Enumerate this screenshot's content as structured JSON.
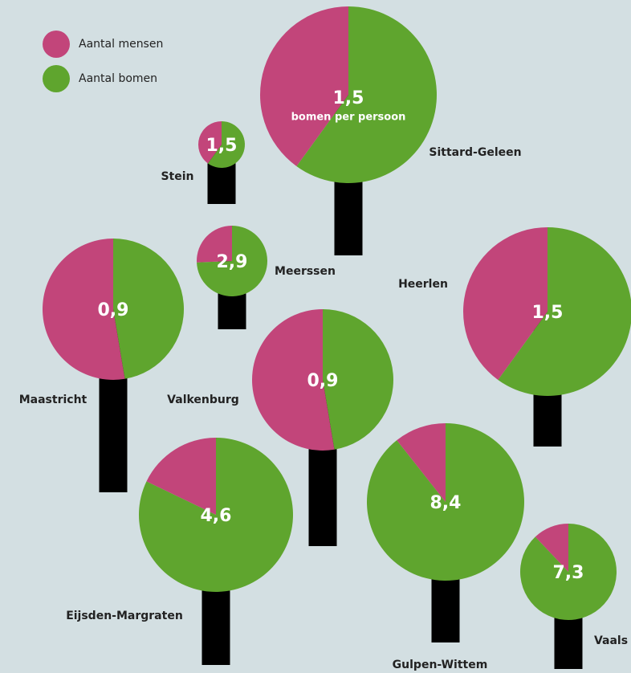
{
  "chart_data": {
    "type": "tree-pie",
    "series": [
      {
        "name": "Aantal mensen",
        "color": "#c2457a"
      },
      {
        "name": "Aantal bomen",
        "color": "#5fa52e"
      }
    ],
    "unit_label": "bomen per persoon",
    "categories": [
      "Sittard-Geleen",
      "Stein",
      "Meerssen",
      "Maastricht",
      "Valkenburg",
      "Heerlen",
      "Gulpen-Wittem",
      "Eijsden-Margraten",
      "Vaals"
    ],
    "values": [
      1.5,
      1.5,
      2.9,
      0.9,
      0.9,
      1.5,
      8.4,
      4.6,
      7.3
    ],
    "value_labels": [
      "1,5",
      "1,5",
      "2,9",
      "0,9",
      "0,9",
      "1,5",
      "8,4",
      "4,6",
      "7,3"
    ]
  }
}
